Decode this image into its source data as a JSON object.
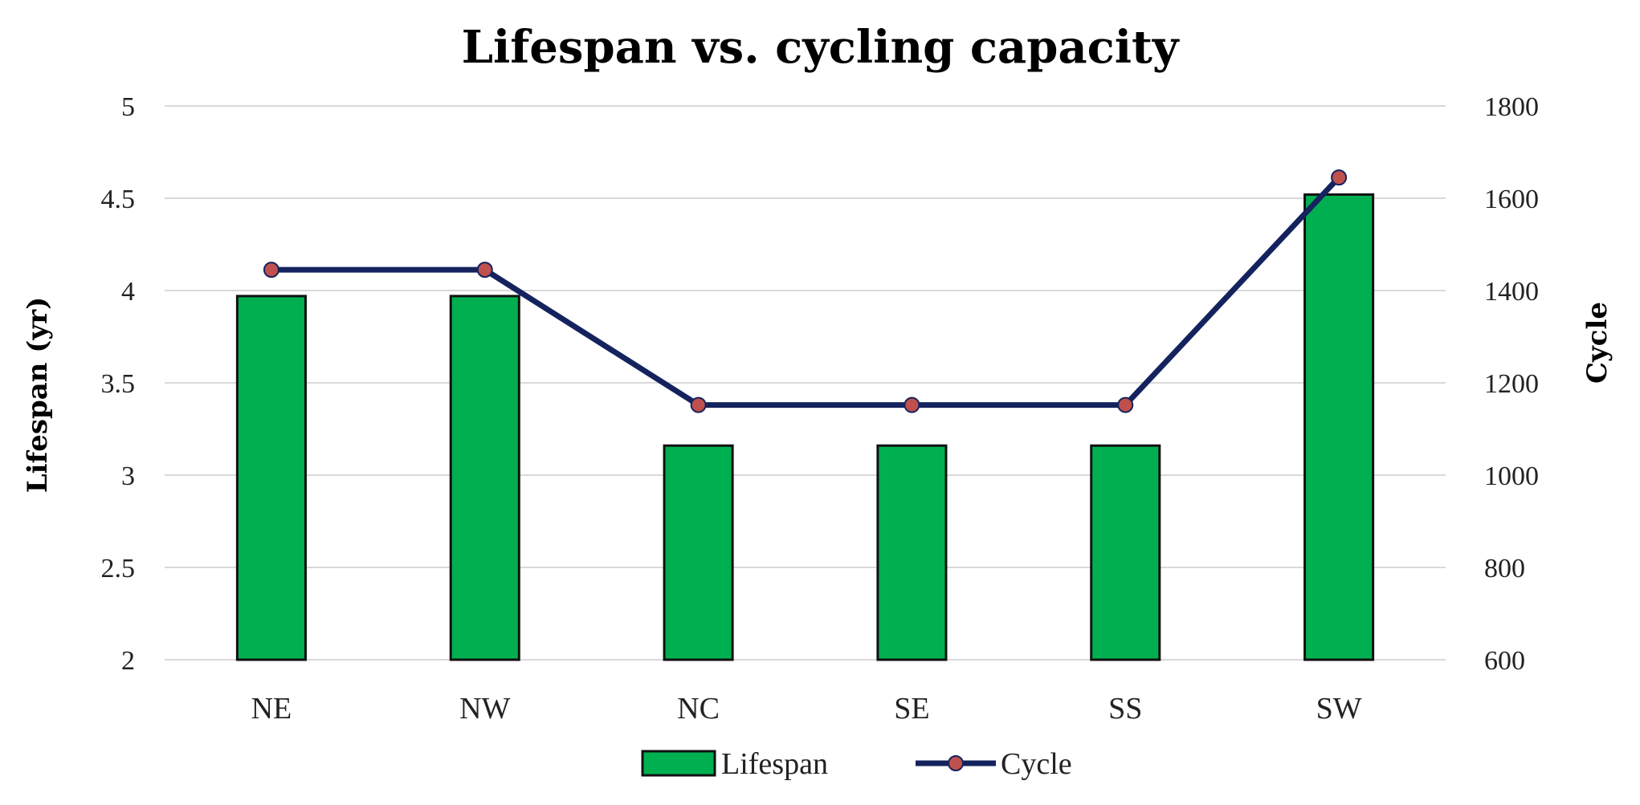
{
  "chart_data": {
    "type": "bar+line",
    "title": "Lifespan vs. cycling capacity",
    "categories": [
      "NE",
      "NW",
      "NC",
      "SE",
      "SS",
      "SW"
    ],
    "series": [
      {
        "name": "Lifespan",
        "type": "bar",
        "axis": "left",
        "values": [
          3.97,
          3.97,
          3.16,
          3.16,
          3.16,
          4.52
        ],
        "color": "#00b050"
      },
      {
        "name": "Cycle",
        "type": "line",
        "axis": "right",
        "values": [
          1445,
          1445,
          1152,
          1152,
          1152,
          1645
        ],
        "color": "#14235e",
        "marker_color": "#c0504d"
      }
    ],
    "ylabel": "Lifespan (yr)",
    "y2label": "Cycle",
    "ylim": [
      2,
      5
    ],
    "y2lim": [
      600,
      1800
    ],
    "yticks": [
      "2",
      "2.5",
      "3",
      "3.5",
      "4",
      "4.5",
      "5"
    ],
    "y2ticks": [
      "600",
      "800",
      "1000",
      "1200",
      "1400",
      "1600",
      "1800"
    ],
    "grid": true,
    "legend": {
      "position": "bottom-center",
      "labels": [
        "Lifespan",
        "Cycle"
      ]
    }
  }
}
